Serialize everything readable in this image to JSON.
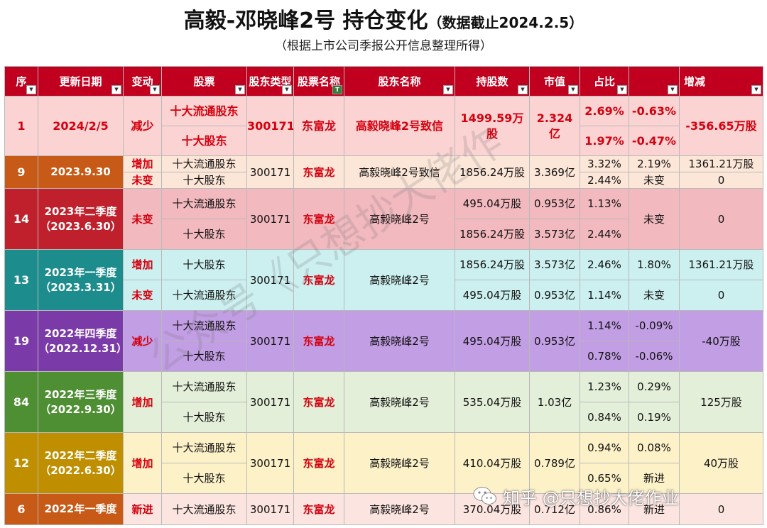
{
  "title": "高毅-邓晓峰2号 持仓变化",
  "title_note": "（数据截止2024.2.5）",
  "subtitle": "（根据上市公司季报公开信息整理所得）",
  "table": {
    "headers": [
      "序",
      "更新日期",
      "变动",
      "股票",
      "股东类型",
      "股票名称",
      "股东名称",
      "持股数",
      "市值",
      "占比",
      "",
      "增减"
    ],
    "rows": [
      {
        "seq": "1",
        "date": "2024/2/5",
        "change": "减少",
        "holder_types": [
          "十大流通股东",
          "十大股东"
        ],
        "code": "300171",
        "stock": "东富龙",
        "holder": "高毅晓峰2号致信",
        "shares": [
          "1499.59万股"
        ],
        "value": [
          "2.324亿"
        ],
        "ratio": [
          "2.69%",
          "1.97%"
        ],
        "ratio_change": [
          "-0.63%",
          "-0.47%"
        ],
        "delta": "-356.65万股"
      },
      {
        "seq": "9",
        "date": "2023.9.30",
        "change": [
          "增加",
          "未变"
        ],
        "holder_types": [
          "十大流通股东",
          "十大股东"
        ],
        "code": "300171",
        "stock": "东富龙",
        "holder": "高毅晓峰2号致信",
        "shares": [
          "1856.24万股"
        ],
        "value": [
          "3.369亿"
        ],
        "ratio": [
          "3.32%",
          "2.44%"
        ],
        "ratio_change": [
          "2.19%",
          "未变"
        ],
        "delta": [
          "1361.21万股",
          "0"
        ]
      },
      {
        "seq": "14",
        "date": "2023年二季度（2023.6.30）",
        "change": "未变",
        "holder_types": [
          "十大流通股东",
          "十大股东"
        ],
        "code": "300171",
        "stock": "东富龙",
        "holder": "高毅晓峰2号",
        "shares": [
          "495.04万股",
          "1856.24万股"
        ],
        "value": [
          "0.953亿",
          "3.573亿"
        ],
        "ratio": [
          "1.13%",
          "2.44%"
        ],
        "ratio_change": "未变",
        "delta": "0"
      },
      {
        "seq": "13",
        "date": "2023年一季度（2023.3.31）",
        "change": [
          "增加",
          "未变"
        ],
        "holder_types": [
          "十大股东",
          "十大流通股东"
        ],
        "code": "300171",
        "stock": "东富龙",
        "holder": "高毅晓峰2号",
        "shares": [
          "1856.24万股",
          "495.04万股"
        ],
        "value": [
          "3.573亿",
          "0.953亿"
        ],
        "ratio": [
          "2.46%",
          "1.14%"
        ],
        "ratio_change": [
          "1.80%",
          "未变"
        ],
        "delta": [
          "1361.21万股",
          "0"
        ]
      },
      {
        "seq": "19",
        "date": "2022年四季度（2022.12.31）",
        "change": "减少",
        "holder_types": [
          "十大流通股东",
          "十大股东"
        ],
        "code": "300171",
        "stock": "东富龙",
        "holder": "高毅晓峰2号",
        "shares": [
          "495.04万股"
        ],
        "value": [
          "0.953亿"
        ],
        "ratio": [
          "1.14%",
          "0.78%"
        ],
        "ratio_change": [
          "-0.09%",
          "-0.06%"
        ],
        "delta": "-40万股"
      },
      {
        "seq": "84",
        "date": "2022年三季度（2022.9.30）",
        "change": "增加",
        "holder_types": [
          "十大流通股东",
          "十大股东"
        ],
        "code": "300171",
        "stock": "东富龙",
        "holder": "高毅晓峰2号",
        "shares": [
          "535.04万股"
        ],
        "value": [
          "1.03亿"
        ],
        "ratio": [
          "1.23%",
          "0.84%"
        ],
        "ratio_change": [
          "0.29%",
          "0.19%"
        ],
        "delta": "125万股"
      },
      {
        "seq": "12",
        "date": "2022年二季度（2022.6.30）",
        "change": "增加",
        "holder_types": [
          "十大流通股东",
          "十大股东"
        ],
        "code": "300171",
        "stock": "东富龙",
        "holder": "高毅晓峰2号",
        "shares": [
          "410.04万股"
        ],
        "value": [
          "0.789亿"
        ],
        "ratio": [
          "0.94%",
          "0.65%"
        ],
        "ratio_change": [
          "0.08%",
          "新进"
        ],
        "delta": "40万股"
      },
      {
        "seq": "6",
        "date": "2022年一季度",
        "change": "新进",
        "holder_types": [
          "十大流通股东"
        ],
        "code": "300171",
        "stock": "东富龙",
        "holder": "高毅晓峰2号",
        "shares": [
          "370.04万股"
        ],
        "value": [
          "0.712亿"
        ],
        "ratio": [
          "0.86%"
        ],
        "ratio_change": [
          "新进"
        ],
        "delta": "0"
      }
    ]
  },
  "watermark": "公众号《只想抄大佬作",
  "credit": "知乎 @只想抄大佬作业",
  "colors": {
    "header_bg": "#c0001e",
    "highlight_text": "#d4000f",
    "row_2024": "#fbd3d3",
    "row_2023q3": "#c65a16",
    "row_2023q2": "#c0202c",
    "row_2023q1": "#1d8c8c",
    "row_2022q4": "#7a3aa8",
    "row_2022q3": "#4f8f33",
    "row_2022q2": "#bf8f00"
  },
  "icons": {
    "filter_dropdown": "dropdown-arrow-icon",
    "active_filter": "filter-icon",
    "credit_logo": "wechat-icon"
  }
}
